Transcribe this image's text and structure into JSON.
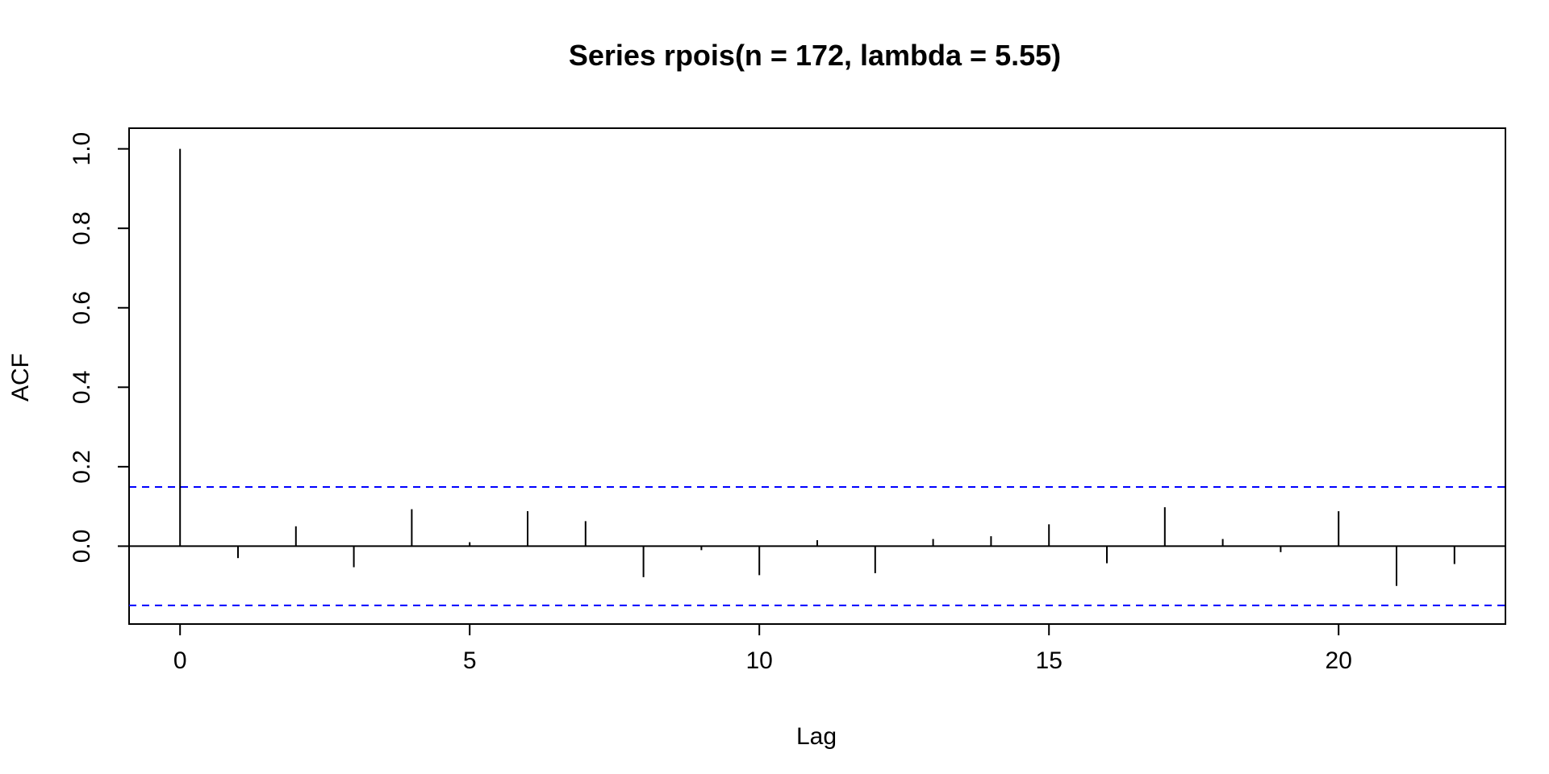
{
  "chart_data": {
    "type": "bar",
    "title": "Series  rpois(n = 172, lambda = 5.55)",
    "xlabel": "Lag",
    "ylabel": "ACF",
    "xlim": [
      -0.88,
      22.88
    ],
    "ylim": [
      -0.196,
      1.052
    ],
    "x_ticks": [
      0,
      5,
      10,
      15,
      20
    ],
    "x_tick_labels": [
      "0",
      "5",
      "10",
      "15",
      "20"
    ],
    "y_ticks": [
      0.0,
      0.2,
      0.4,
      0.6,
      0.8,
      1.0
    ],
    "y_tick_labels": [
      "0.0",
      "0.2",
      "0.4",
      "0.6",
      "0.8",
      "1.0"
    ],
    "lags": [
      0,
      1,
      2,
      3,
      4,
      5,
      6,
      7,
      8,
      9,
      10,
      11,
      12,
      13,
      14,
      15,
      16,
      17,
      18,
      19,
      20,
      21,
      22
    ],
    "acf": [
      1.0,
      -0.03,
      0.05,
      -0.053,
      0.093,
      0.01,
      0.088,
      0.063,
      -0.078,
      -0.01,
      -0.073,
      0.015,
      -0.068,
      0.018,
      0.025,
      0.055,
      -0.043,
      0.098,
      0.018,
      -0.015,
      0.088,
      -0.1,
      -0.045
    ],
    "confidence_limit": 0.149,
    "colors": {
      "bars": "#000000",
      "ci_lines": "#0000ff",
      "frame": "#000000"
    }
  }
}
